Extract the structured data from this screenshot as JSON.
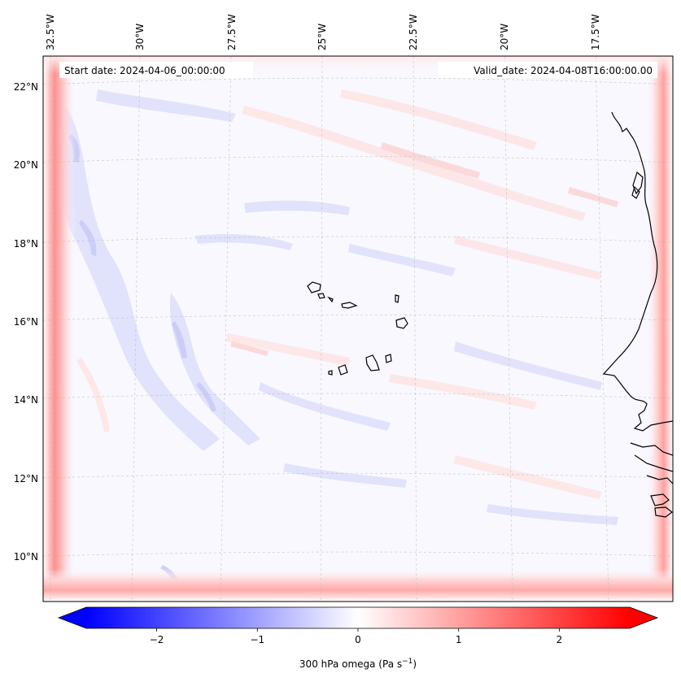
{
  "map": {
    "start_date_label": "Start date: 2024-04-06_00:00:00",
    "valid_date_label": "Valid_date: 2024-04-08T16:00:00.00",
    "lon_ticks": [
      "32.5°W",
      "30°W",
      "27.5°W",
      "25°W",
      "22.5°W",
      "20°W",
      "17.5°W"
    ],
    "lat_ticks": [
      "22°N",
      "20°N",
      "18°N",
      "16°N",
      "14°N",
      "12°N",
      "10°N"
    ],
    "gridlines": true,
    "coastline_color": "#000000"
  },
  "colorbar": {
    "label_main": "300 hPa omega (Pa s",
    "label_exp": "−1",
    "label_end": ")",
    "ticks": [
      "−2",
      "−1",
      "0",
      "1",
      "2"
    ],
    "min": -2.7,
    "max": 2.7,
    "tick_values": [
      -2,
      -1,
      0,
      1,
      2
    ],
    "extend": "both",
    "cmap": "bwr",
    "color_low": "#0000ff",
    "color_mid": "#ffffff",
    "color_high": "#ff0000"
  }
}
